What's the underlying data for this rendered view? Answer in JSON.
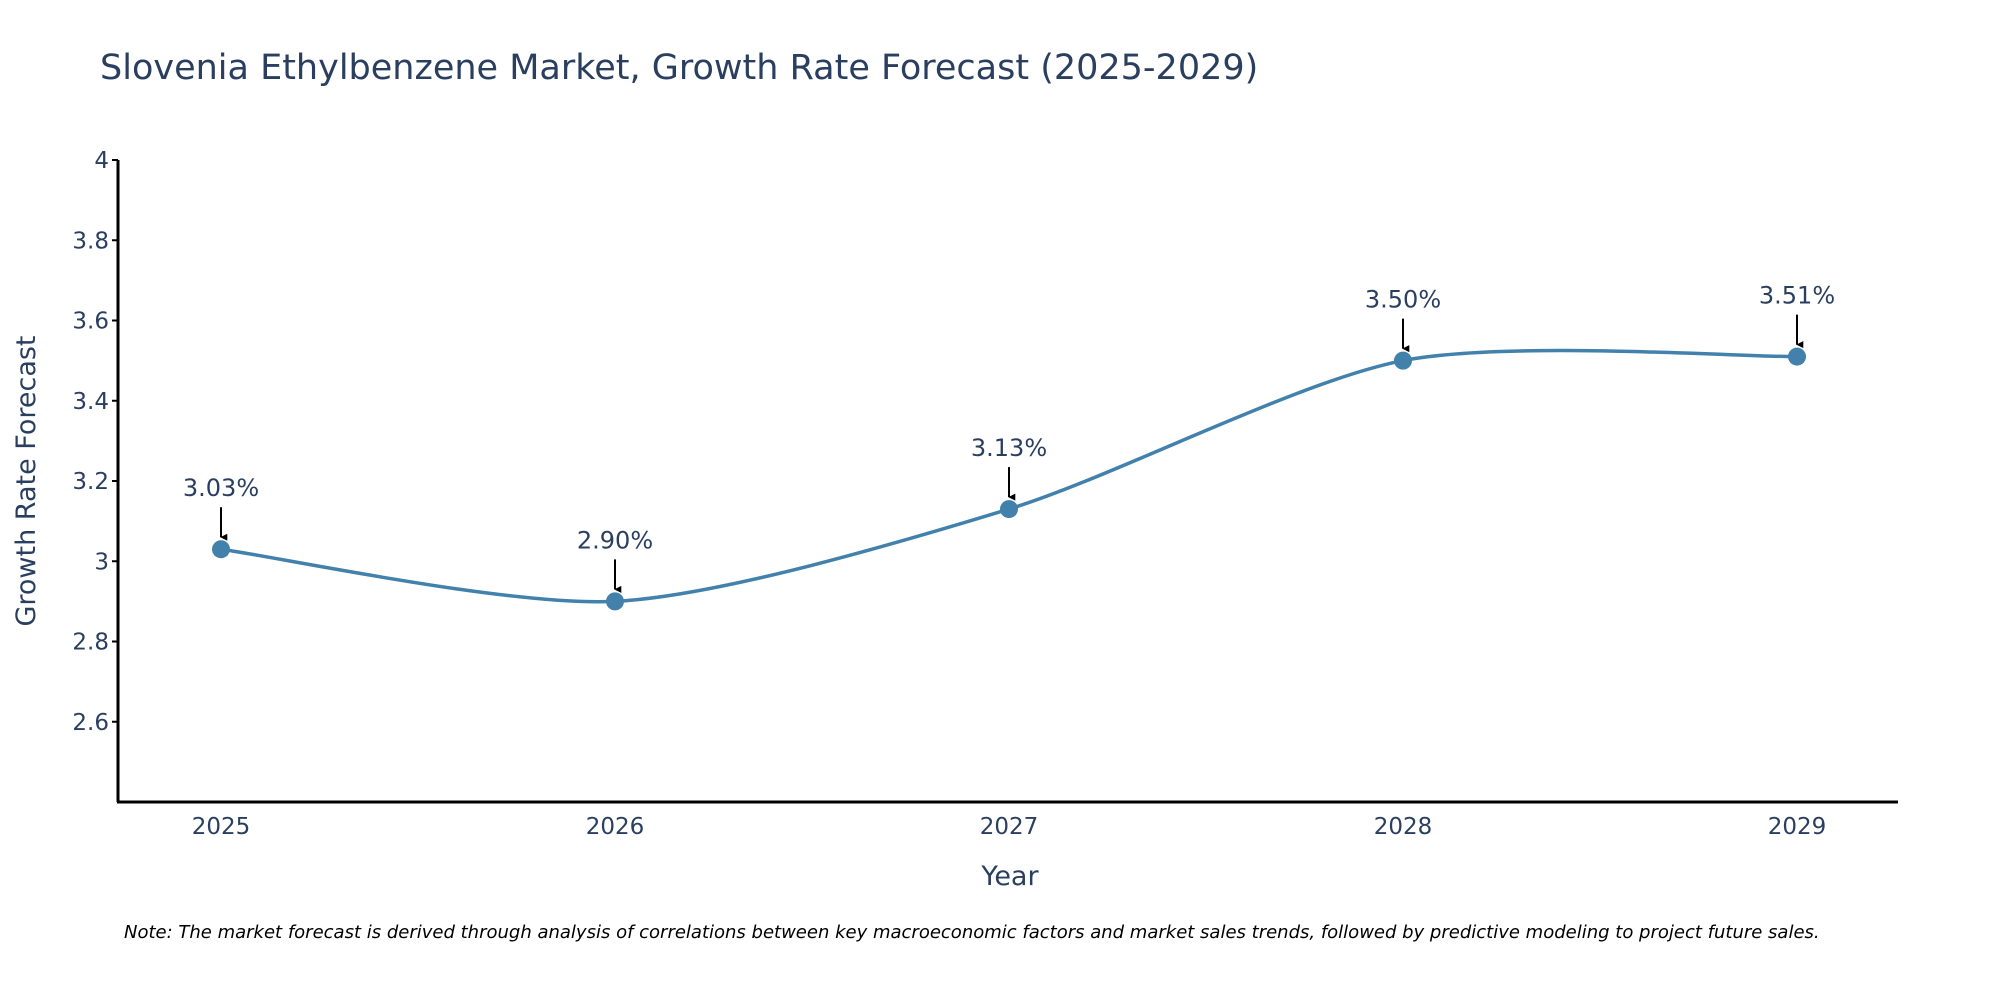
{
  "chart_data": {
    "type": "line",
    "title": "Slovenia Ethylbenzene Market, Growth Rate Forecast (2025-2029)",
    "xlabel": "Year",
    "ylabel": "Growth Rate Forecast",
    "categories": [
      "2025",
      "2026",
      "2027",
      "2028",
      "2029"
    ],
    "x": [
      2025,
      2026,
      2027,
      2028,
      2029
    ],
    "values": [
      3.03,
      2.9,
      3.13,
      3.5,
      3.51
    ],
    "data_labels": [
      "3.03%",
      "2.90%",
      "3.13%",
      "3.50%",
      "3.51%"
    ],
    "ylim": [
      2.4,
      4.0
    ],
    "y_ticks": [
      2.6,
      2.8,
      3.0,
      3.2,
      3.4,
      3.6,
      3.8,
      4.0
    ],
    "y_tick_labels": [
      "2.6",
      "2.8",
      "3",
      "3.2",
      "3.4",
      "3.6",
      "3.8",
      "4"
    ],
    "grid": false,
    "line_shape": "spline",
    "line_color": "#4181AC",
    "note": "Note: The market forecast is derived through analysis of correlations between key macroeconomic factors and market sales trends, followed by predictive modeling to project future sales."
  }
}
